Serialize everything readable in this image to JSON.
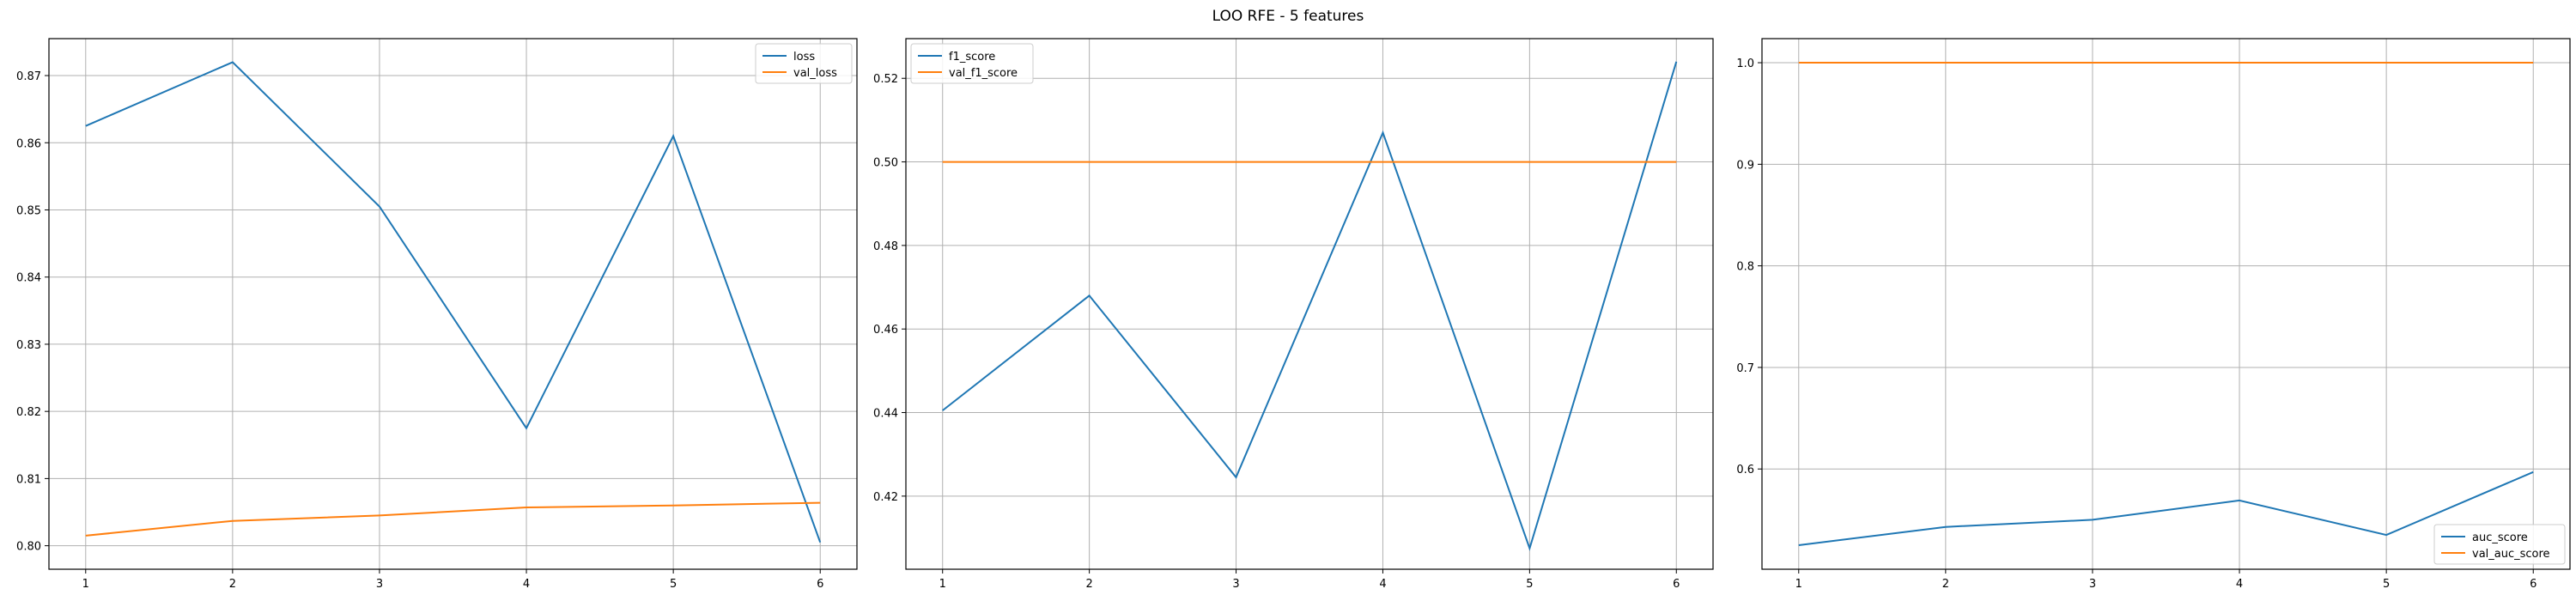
{
  "title": "LOO RFE - 5 features",
  "colors": {
    "series1": "#1f77b4",
    "series2": "#ff7f0e",
    "grid": "#b0b0b0"
  },
  "chart_data": [
    {
      "type": "line",
      "x": [
        1,
        2,
        3,
        4,
        5,
        6
      ],
      "series": [
        {
          "name": "loss",
          "values": [
            0.8625,
            0.872,
            0.8505,
            0.8175,
            0.861,
            0.8005
          ]
        },
        {
          "name": "val_loss",
          "values": [
            0.8015,
            0.8037,
            0.8045,
            0.8057,
            0.806,
            0.8064
          ]
        }
      ],
      "xlim": [
        0.75,
        6.25
      ],
      "ylim": [
        0.7965,
        0.8755
      ],
      "xticks": [
        1,
        2,
        3,
        4,
        5,
        6
      ],
      "yticks": [
        0.8,
        0.81,
        0.82,
        0.83,
        0.84,
        0.85,
        0.86,
        0.87
      ],
      "ytick_labels": [
        "0.80",
        "0.81",
        "0.82",
        "0.83",
        "0.84",
        "0.85",
        "0.86",
        "0.87"
      ],
      "grid": true,
      "legend": "upper right"
    },
    {
      "type": "line",
      "x": [
        1,
        2,
        3,
        4,
        5,
        6
      ],
      "series": [
        {
          "name": "f1_score",
          "values": [
            0.4405,
            0.468,
            0.4245,
            0.507,
            0.4075,
            0.524
          ]
        },
        {
          "name": "val_f1_score",
          "values": [
            0.5,
            0.5,
            0.5,
            0.5,
            0.5,
            0.5
          ]
        }
      ],
      "xlim": [
        0.75,
        6.25
      ],
      "ylim": [
        0.4025,
        0.5295
      ],
      "xticks": [
        1,
        2,
        3,
        4,
        5,
        6
      ],
      "yticks": [
        0.42,
        0.44,
        0.46,
        0.48,
        0.5,
        0.52
      ],
      "ytick_labels": [
        "0.42",
        "0.44",
        "0.46",
        "0.48",
        "0.50",
        "0.52"
      ],
      "grid": true,
      "legend": "upper left"
    },
    {
      "type": "line",
      "x": [
        1,
        2,
        3,
        4,
        5,
        6
      ],
      "series": [
        {
          "name": "auc_score",
          "values": [
            0.525,
            0.543,
            0.55,
            0.569,
            0.535,
            0.597
          ]
        },
        {
          "name": "val_auc_score",
          "values": [
            1.0,
            1.0,
            1.0,
            1.0,
            1.0,
            1.0
          ]
        }
      ],
      "xlim": [
        0.75,
        6.25
      ],
      "ylim": [
        0.5013,
        1.0237
      ],
      "xticks": [
        1,
        2,
        3,
        4,
        5,
        6
      ],
      "yticks": [
        0.6,
        0.7,
        0.8,
        0.9,
        1.0
      ],
      "ytick_labels": [
        "0.6",
        "0.7",
        "0.8",
        "0.9",
        "1.0"
      ],
      "grid": true,
      "legend": "lower right"
    }
  ]
}
